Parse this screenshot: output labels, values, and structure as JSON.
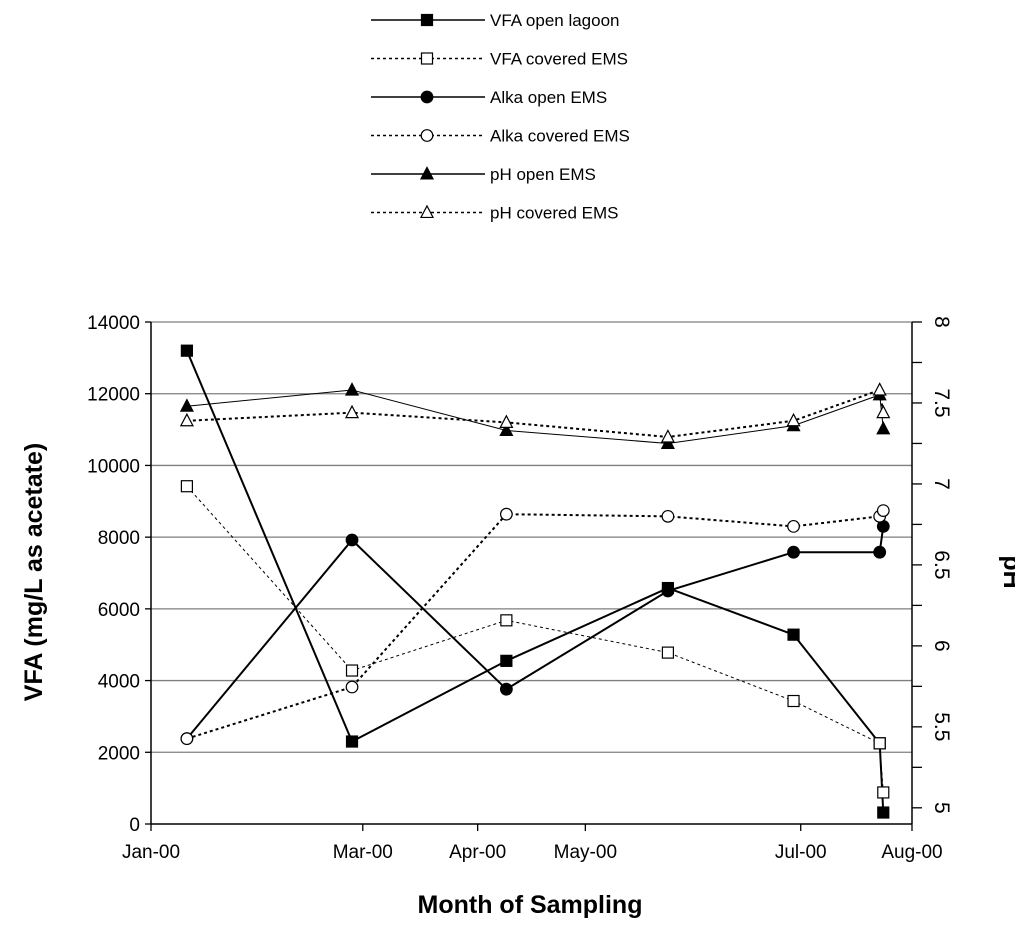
{
  "chart_data": {
    "type": "line",
    "xlabel": "Month of Sampling",
    "ylabel": "VFA (mg/L as acetate)",
    "y2label": "pH",
    "x_ticks": [
      "Jan-00",
      "Mar-00",
      "Apr-00",
      "May-00",
      "Jul-00",
      "Aug-00"
    ],
    "x_tick_dates": [
      "2000-01-01",
      "2000-02-29",
      "2000-04-01",
      "2000-05-01",
      "2000-06-30",
      "2000-07-31"
    ],
    "ylim": [
      0,
      14000
    ],
    "y_ticks": [
      "0",
      "2000",
      "4000",
      "6000",
      "8000",
      "10000",
      "12000",
      "14000"
    ],
    "y_tick_values": [
      0,
      2000,
      4000,
      6000,
      8000,
      10000,
      12000,
      14000
    ],
    "y2lim": [
      4.9,
      8
    ],
    "y2_ticks": [
      "5",
      "5.5",
      "6",
      "6.5",
      "7",
      "7.5",
      "8"
    ],
    "y2_tick_values": [
      5,
      5.5,
      6,
      6.5,
      7,
      7.5,
      8
    ],
    "grid": true,
    "legend_position": "top-center",
    "series": [
      {
        "name": "VFA open lagoon",
        "axis": "left",
        "marker": "square-filled",
        "line": "solid",
        "lineWidth": 2,
        "x": [
          "2000-01-11",
          "2000-02-26",
          "2000-04-09",
          "2000-05-24",
          "2000-06-28",
          "2000-07-22",
          "2000-07-23"
        ],
        "y": [
          13200,
          2300,
          4550,
          6580,
          5280,
          2250,
          320
        ]
      },
      {
        "name": "VFA covered EMS",
        "axis": "left",
        "marker": "square-open",
        "line": "dotted",
        "lineWidth": 1,
        "x": [
          "2000-01-11",
          "2000-02-26",
          "2000-04-09",
          "2000-05-24",
          "2000-06-28",
          "2000-07-22",
          "2000-07-23"
        ],
        "y": [
          9420,
          4280,
          5680,
          4780,
          3430,
          2250,
          880
        ]
      },
      {
        "name": "Alka open EMS",
        "axis": "left",
        "marker": "circle-filled",
        "line": "solid",
        "lineWidth": 2,
        "x": [
          "2000-01-11",
          "2000-02-26",
          "2000-04-09",
          "2000-05-24",
          "2000-06-28",
          "2000-07-22",
          "2000-07-23"
        ],
        "y": [
          2380,
          7920,
          3760,
          6500,
          7580,
          7580,
          8300
        ]
      },
      {
        "name": "Alka covered EMS",
        "axis": "left",
        "marker": "circle-open",
        "line": "dotted",
        "lineWidth": 2,
        "x": [
          "2000-01-11",
          "2000-02-26",
          "2000-04-09",
          "2000-05-24",
          "2000-06-28",
          "2000-07-22",
          "2000-07-23"
        ],
        "y": [
          2380,
          3820,
          8640,
          8580,
          8300,
          8580,
          8740
        ]
      },
      {
        "name": "pH open EMS",
        "axis": "right",
        "marker": "triangle-filled",
        "line": "solid",
        "lineWidth": 1,
        "x": [
          "2000-01-11",
          "2000-02-26",
          "2000-04-09",
          "2000-05-24",
          "2000-06-28",
          "2000-07-22",
          "2000-07-23"
        ],
        "y": [
          7.48,
          7.58,
          7.33,
          7.25,
          7.36,
          7.55,
          7.34
        ]
      },
      {
        "name": "pH covered EMS",
        "axis": "right",
        "marker": "triangle-open",
        "line": "dotted",
        "lineWidth": 2,
        "x": [
          "2000-01-11",
          "2000-02-26",
          "2000-04-09",
          "2000-05-24",
          "2000-06-28",
          "2000-07-22",
          "2000-07-23"
        ],
        "y": [
          7.39,
          7.44,
          7.38,
          7.29,
          7.39,
          7.58,
          7.44
        ]
      }
    ]
  }
}
